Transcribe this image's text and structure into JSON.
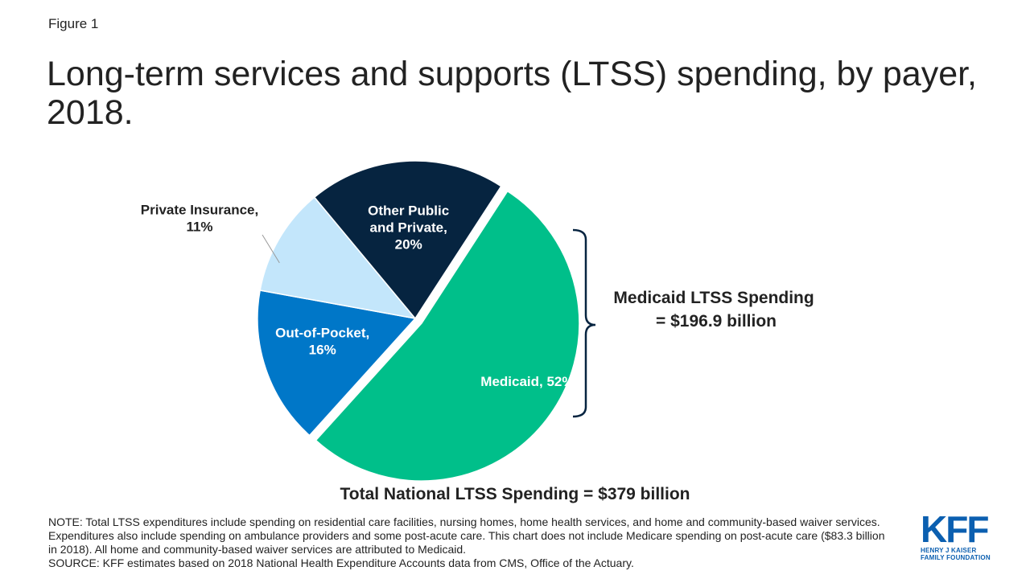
{
  "header": {
    "figure_label": "Figure 1",
    "title": "Long-term services and supports (LTSS) spending, by payer, 2018."
  },
  "chart_data": {
    "type": "pie",
    "title": "Long-term services and supports (LTSS) spending, by payer, 2018.",
    "slices": [
      {
        "name": "Medicaid",
        "value": 52,
        "label_lines": [
          "Medicaid, 52%"
        ],
        "color": "#00bf8a",
        "text_color": "#ffffff",
        "exploded": true
      },
      {
        "name": "Out-of-Pocket",
        "value": 16,
        "label_lines": [
          "Out-of-Pocket,",
          "16%"
        ],
        "color": "#0077c8",
        "text_color": "#ffffff"
      },
      {
        "name": "Private Insurance",
        "value": 11,
        "label_lines": [
          "Private Insurance,",
          "11%"
        ],
        "color": "#c3e6fb",
        "text_color": "#222222",
        "outside_label": true
      },
      {
        "name": "Other Public and Private",
        "value": 20,
        "label_lines": [
          "Other Public",
          "and Private,",
          "20%"
        ],
        "color": "#062440",
        "text_color": "#ffffff"
      }
    ],
    "callout": {
      "lines": [
        "Medicaid LTSS Spending",
        "= $196.9 billion"
      ],
      "bracket_color": "#062440"
    },
    "total_label": "Total National LTSS Spending = $379 billion"
  },
  "notes": {
    "note": "NOTE: Total LTSS expenditures include spending on residential care facilities, nursing homes, home health services, and home and community-based waiver services. Expenditures also include spending on ambulance providers and some post-acute care. This chart does not include Medicare spending on post-acute care ($83.3 billion in 2018). All home and community-based waiver services are attributed to Medicaid.",
    "source": "SOURCE: KFF estimates based on 2018 National Health Expenditure Accounts data from CMS, Office of the Actuary."
  },
  "logo": {
    "mark": "KFF",
    "line1": "HENRY J KAISER",
    "line2": "FAMILY FOUNDATION",
    "color": "#0b5fb0"
  }
}
